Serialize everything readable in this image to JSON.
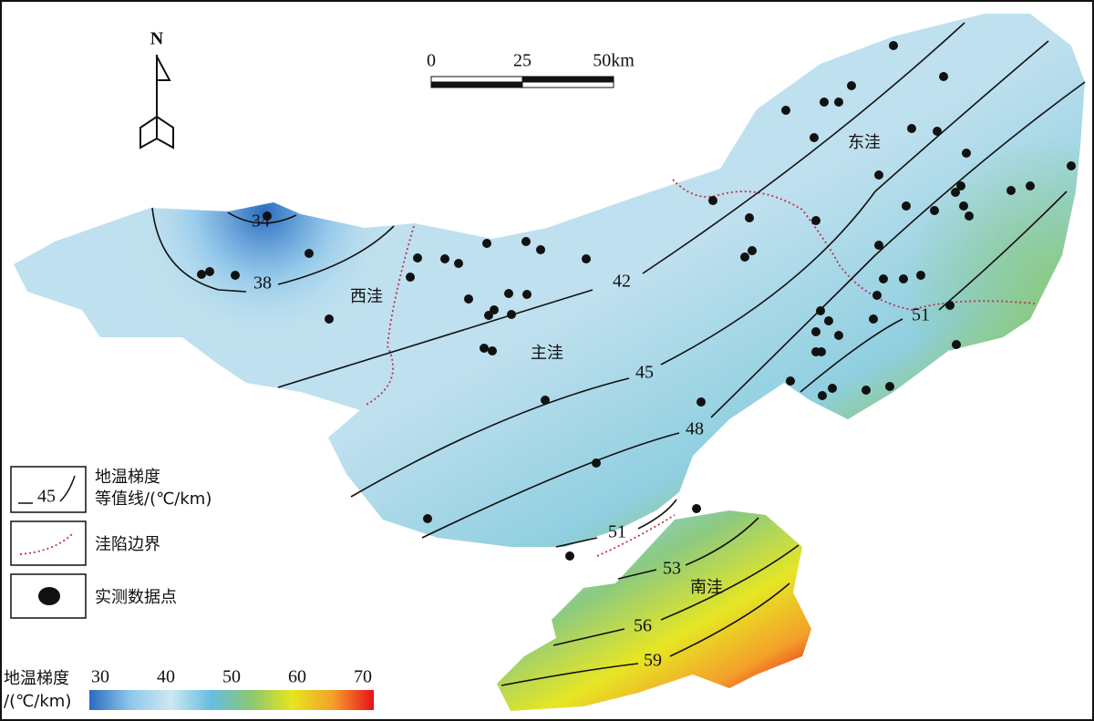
{
  "north_label": "N",
  "scale_bar": {
    "ticks": [
      0,
      25,
      {
        "value": 50,
        "label": "50km"
      }
    ]
  },
  "contour_labels": [
    34,
    38,
    42,
    45,
    48,
    51,
    51,
    53,
    56,
    59
  ],
  "regions": [
    "西洼",
    "主洼",
    "东洼",
    "南洼"
  ],
  "legend": {
    "contour_label": [
      "地温梯度",
      "等值线/(℃/km)"
    ],
    "sample_label": 45,
    "boundary_label": "洼陷边界",
    "points_label": "实测数据点"
  },
  "colorbar": {
    "title": [
      "地温梯度",
      "/(℃/km)"
    ],
    "range": [
      30,
      70
    ],
    "ticks": [
      30,
      40,
      50,
      60,
      70
    ],
    "colors": [
      "#2a6cc0",
      "#8ec6ea",
      "#cde8f2",
      "#66bde2",
      "#8cc870",
      "#e6e61c",
      "#f4a02a",
      "#e8101c"
    ]
  }
}
